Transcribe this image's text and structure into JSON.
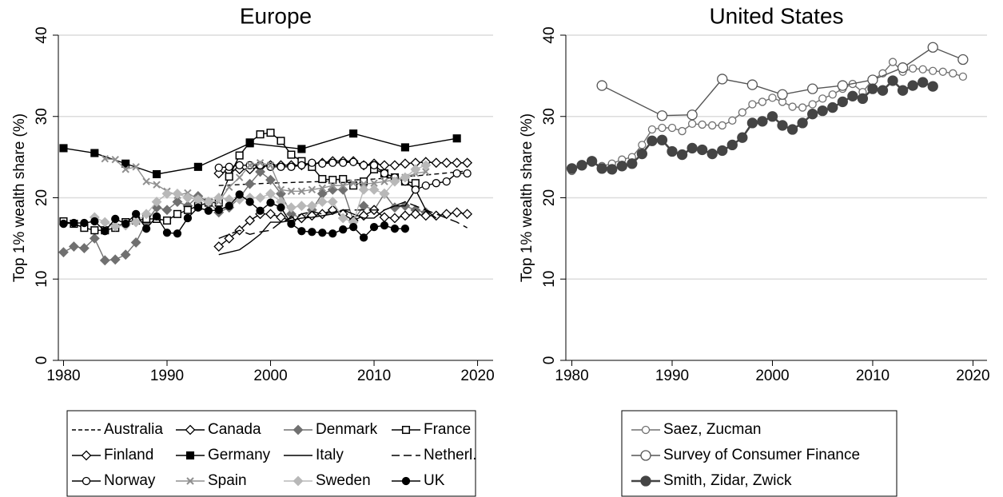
{
  "chart_data": [
    {
      "type": "line",
      "title": "Europe",
      "ylabel": "Top 1% wealth share (%)",
      "xlim": [
        1979.5,
        2021.5
      ],
      "xticks": [
        1980,
        1990,
        2000,
        2010,
        2020
      ],
      "ylim": [
        0,
        40
      ],
      "yticks": [
        0,
        10,
        20,
        30,
        40
      ],
      "grid": true,
      "legend": "bottom",
      "series": [
        {
          "name": "Australia",
          "color": "#000000",
          "dash": "dash",
          "marker": "none",
          "x": [
            1995,
            2000,
            2005,
            2010,
            2015,
            2019
          ],
          "values": [
            21.5,
            21.8,
            22,
            22.3,
            22.8,
            23.3
          ]
        },
        {
          "name": "Canada",
          "color": "#000000",
          "dash": "solid",
          "marker": "diamond-open",
          "x": [
            1995,
            1996,
            1997,
            1998,
            1999,
            2000,
            2001,
            2002,
            2003,
            2004,
            2005,
            2006,
            2007,
            2008,
            2009,
            2010,
            2011,
            2012,
            2013,
            2014,
            2015,
            2016,
            2017,
            2018,
            2019
          ],
          "values": [
            23,
            23.3,
            23.5,
            23.5,
            23.8,
            24,
            24,
            24,
            24,
            24.2,
            24.3,
            24.5,
            24.5,
            24.5,
            24,
            24.2,
            24,
            24,
            24.2,
            24.3,
            24.4,
            24.3,
            24.3,
            24.3,
            24.3
          ]
        },
        {
          "name": "Denmark",
          "color": "#707070",
          "dash": "solid",
          "marker": "diamond",
          "x": [
            1980,
            1981,
            1982,
            1983,
            1984,
            1985,
            1986,
            1987,
            1988,
            1989,
            1990,
            1991,
            1992,
            1993,
            1994,
            1995,
            1996,
            1997,
            1998,
            1999,
            2000,
            2001,
            2002,
            2003,
            2004,
            2005,
            2006,
            2007,
            2008,
            2009,
            2010,
            2011,
            2012,
            2013,
            2014,
            2015
          ],
          "values": [
            13.3,
            14,
            13.8,
            15,
            12.3,
            12.4,
            13,
            14.5,
            17,
            18.8,
            18.5,
            19.5,
            19,
            20.2,
            19.5,
            18.2,
            18.8,
            20,
            21.7,
            23.2,
            22.2,
            20.5,
            18,
            17.5,
            18.5,
            20.5,
            21,
            21,
            17.2,
            19,
            18.5,
            20.5,
            18.8,
            19,
            18.5,
            18.2
          ]
        },
        {
          "name": "France",
          "color": "#000000",
          "dash": "solid",
          "marker": "square-open",
          "x": [
            1980,
            1981,
            1982,
            1983,
            1984,
            1985,
            1986,
            1987,
            1988,
            1989,
            1990,
            1991,
            1992,
            1993,
            1994,
            1995,
            1996,
            1997,
            1998,
            1999,
            2000,
            2001,
            2002,
            2003,
            2004,
            2005,
            2006,
            2007,
            2008,
            2009,
            2010,
            2011,
            2012,
            2013,
            2014
          ],
          "values": [
            17.1,
            16.8,
            16.3,
            16,
            16,
            16.3,
            17,
            17.2,
            17.4,
            17.4,
            17.2,
            18,
            18.5,
            19,
            19.4,
            19.4,
            22.6,
            25.2,
            26.8,
            27.8,
            28,
            27,
            25.3,
            24.5,
            23.8,
            22.3,
            22.2,
            22.3,
            21.5,
            22,
            23.5,
            23,
            22.5,
            22,
            21.8
          ]
        },
        {
          "name": "Finland",
          "color": "#000000",
          "dash": "solid",
          "marker": "diamond-open",
          "x": [
            1995,
            1996,
            1997,
            1998,
            1999,
            2000,
            2001,
            2002,
            2003,
            2004,
            2005,
            2006,
            2007,
            2008,
            2009,
            2010,
            2011,
            2012,
            2013,
            2014,
            2015,
            2016,
            2017,
            2018,
            2019
          ],
          "values": [
            14,
            15,
            16,
            17.2,
            18,
            18,
            17.6,
            17.2,
            17.5,
            17.8,
            18,
            18.5,
            18,
            17.2,
            17.8,
            18.5,
            17.6,
            17.5,
            17.8,
            18,
            17.8,
            17.8,
            18,
            18.2,
            18
          ]
        },
        {
          "name": "Germany",
          "color": "#000000",
          "dash": "solid",
          "marker": "square",
          "x": [
            1980,
            1983,
            1986,
            1989,
            1993,
            1998,
            2003,
            2008,
            2013,
            2018
          ],
          "values": [
            26.1,
            25.5,
            24.2,
            22.9,
            23.8,
            26.7,
            26,
            27.9,
            26.2,
            27.3
          ]
        },
        {
          "name": "Italy",
          "color": "#000000",
          "dash": "solid",
          "marker": "none",
          "x": [
            1995,
            1996,
            1997,
            1998,
            1999,
            2000,
            2001,
            2002,
            2003,
            2004,
            2005,
            2006,
            2007,
            2008,
            2009,
            2010,
            2011,
            2012,
            2013,
            2014,
            2015,
            2016
          ],
          "values": [
            13,
            13.3,
            13.6,
            14.5,
            15.5,
            17,
            17,
            17.2,
            17.5,
            17.6,
            17.8,
            18,
            18.5,
            18,
            17.5,
            17.5,
            18.5,
            19,
            19,
            21,
            18.5,
            17.5
          ]
        },
        {
          "name": "Netherl.",
          "color": "#000000",
          "dash": "longdash",
          "marker": "none",
          "x": [
            1995,
            1996,
            1997,
            1998,
            1999,
            2000,
            2001,
            2002,
            2003,
            2004,
            2005,
            2006,
            2007,
            2008,
            2009,
            2010,
            2011,
            2012,
            2013,
            2014,
            2015,
            2016,
            2017,
            2018,
            2019
          ],
          "values": [
            15,
            15.5,
            16,
            15.5,
            15.8,
            16,
            17,
            17.5,
            18,
            18.3,
            18,
            18.2,
            18.5,
            18.5,
            18.5,
            18.5,
            18.5,
            19,
            19.5,
            19,
            18.5,
            18,
            17.5,
            17,
            16.3
          ]
        },
        {
          "name": "Norway",
          "color": "#000000",
          "dash": "solid",
          "marker": "circle-open",
          "x": [
            1995,
            1996,
            1997,
            1998,
            1999,
            2000,
            2001,
            2002,
            2003,
            2004,
            2005,
            2006,
            2007,
            2008,
            2009,
            2010,
            2011,
            2012,
            2013,
            2014,
            2015,
            2016,
            2017,
            2018,
            2019
          ],
          "values": [
            23.7,
            23.8,
            24,
            24,
            24,
            23.8,
            23.8,
            23.8,
            24,
            24.3,
            24.2,
            24.3,
            24.3,
            24.4,
            24,
            24,
            23,
            22.5,
            22,
            21,
            21.5,
            21.8,
            22,
            23,
            23
          ]
        },
        {
          "name": "Spain",
          "color": "#909090",
          "dash": "solid",
          "marker": "x",
          "x": [
            1984,
            1985,
            1986,
            1987,
            1988,
            1989,
            1990,
            1991,
            1992,
            1993,
            1994,
            1995,
            1996,
            1997,
            1998,
            1999,
            2000,
            2001,
            2002,
            2003,
            2004,
            2005,
            2006,
            2007,
            2008,
            2009,
            2010,
            2011,
            2012,
            2013,
            2014,
            2015
          ],
          "values": [
            24.8,
            24.7,
            23.5,
            23.8,
            22,
            21.6,
            20.8,
            20.3,
            20.6,
            19.8,
            19.5,
            19.5,
            21.3,
            22.5,
            24,
            24.3,
            24,
            21,
            20.8,
            20.8,
            21,
            21.2,
            21.5,
            21.5,
            21.8,
            21.7,
            21.8,
            22,
            22.2,
            22.5,
            23,
            23.2
          ]
        },
        {
          "name": "Sweden",
          "color": "#b8b8b8",
          "dash": "solid",
          "marker": "diamond",
          "x": [
            1983,
            1984,
            1985,
            1986,
            1987,
            1988,
            1989,
            1990,
            1991,
            1992,
            1993,
            1994,
            1995,
            1996,
            1997,
            1998,
            1999,
            2000,
            2001,
            2002,
            2003,
            2004,
            2005,
            2006,
            2007,
            2008,
            2009,
            2010,
            2011,
            2012,
            2013,
            2014,
            2015
          ],
          "values": [
            17.6,
            17,
            16.5,
            16.6,
            17,
            18,
            19.5,
            20.5,
            20.5,
            20,
            19.8,
            19.5,
            20,
            19.8,
            19.8,
            20,
            20,
            20.5,
            19.5,
            18.8,
            19,
            19,
            19.5,
            19.5,
            17.5,
            17,
            21,
            21,
            20.5,
            22,
            22.5,
            23.5,
            24
          ]
        },
        {
          "name": "UK",
          "color": "#000000",
          "dash": "solid",
          "marker": "circle",
          "x": [
            1980,
            1981,
            1982,
            1983,
            1984,
            1985,
            1986,
            1987,
            1988,
            1989,
            1990,
            1991,
            1992,
            1993,
            1994,
            1995,
            1996,
            1997,
            1998,
            1999,
            2000,
            2001,
            2002,
            2003,
            2004,
            2005,
            2006,
            2007,
            2008,
            2009,
            2010,
            2011,
            2012,
            2013
          ],
          "values": [
            16.8,
            16.9,
            16.9,
            17.1,
            15.9,
            17.4,
            16.8,
            18,
            16.2,
            17.7,
            15.7,
            15.6,
            17.5,
            18.8,
            18.4,
            18.5,
            19,
            20.4,
            19.5,
            18.4,
            19.4,
            18.8,
            16.8,
            15.9,
            15.8,
            15.7,
            15.6,
            16.1,
            16.4,
            15.1,
            16.4,
            16.6,
            16.2,
            16.2
          ]
        }
      ]
    },
    {
      "type": "line",
      "title": "United States",
      "ylabel": "Top 1% wealth share (%)",
      "xlim": [
        1979.4,
        2021.4
      ],
      "xticks": [
        1980,
        1990,
        2000,
        2010,
        2020
      ],
      "ylim": [
        0,
        40
      ],
      "yticks": [
        0,
        10,
        20,
        30,
        40
      ],
      "grid": true,
      "legend": "bottom",
      "series": [
        {
          "name": "Saez, Zucman",
          "color": "#707070",
          "dash": "solid",
          "marker": "circle-open",
          "x": [
            1980,
            1981,
            1982,
            1983,
            1984,
            1985,
            1986,
            1987,
            1988,
            1989,
            1990,
            1991,
            1992,
            1993,
            1994,
            1995,
            1996,
            1997,
            1998,
            1999,
            2000,
            2001,
            2002,
            2003,
            2004,
            2005,
            2006,
            2007,
            2008,
            2009,
            2010,
            2011,
            2012,
            2013,
            2014,
            2015,
            2016,
            2017,
            2018,
            2019
          ],
          "values": [
            23.3,
            24,
            24.3,
            23.9,
            24.2,
            24.7,
            25,
            26.5,
            28.4,
            28.6,
            28.6,
            28.2,
            29.1,
            29,
            28.9,
            28.9,
            29.5,
            30.5,
            31.5,
            31.8,
            32.3,
            31.8,
            31.2,
            31.1,
            31.5,
            32.2,
            32.7,
            33.4,
            34,
            33,
            34.5,
            35.3,
            36.7,
            35.5,
            35.9,
            35.8,
            35.6,
            35.5,
            35.3,
            34.9
          ]
        },
        {
          "name": "Survey of Consumer Finance",
          "color": "#555555",
          "dash": "solid",
          "marker": "circle-open-large",
          "x": [
            1983,
            1989,
            1992,
            1995,
            1998,
            2001,
            2004,
            2007,
            2010,
            2013,
            2016,
            2019
          ],
          "values": [
            33.8,
            30.1,
            30.2,
            34.6,
            33.9,
            32.7,
            33.4,
            33.8,
            34.5,
            36,
            38.5,
            37
          ]
        },
        {
          "name": "Smith, Zidar, Zwick",
          "color": "#444444",
          "dash": "thick",
          "marker": "circle-large",
          "x": [
            1980,
            1981,
            1982,
            1983,
            1984,
            1985,
            1986,
            1987,
            1988,
            1989,
            1990,
            1991,
            1992,
            1993,
            1994,
            1995,
            1996,
            1997,
            1998,
            1999,
            2000,
            2001,
            2002,
            2003,
            2004,
            2005,
            2006,
            2007,
            2008,
            2009,
            2010,
            2011,
            2012,
            2013,
            2014,
            2015,
            2016
          ],
          "values": [
            23.6,
            24,
            24.5,
            23.6,
            23.5,
            23.9,
            24.2,
            25.4,
            27,
            27.1,
            25.7,
            25.3,
            26.1,
            25.9,
            25.4,
            25.8,
            26.5,
            27.4,
            29.2,
            29.4,
            30,
            28.9,
            28.4,
            29.2,
            30.3,
            30.7,
            31.1,
            31.8,
            32.5,
            32.2,
            33.4,
            33.2,
            34.4,
            33.2,
            33.8,
            34.2,
            33.7
          ]
        }
      ]
    }
  ]
}
